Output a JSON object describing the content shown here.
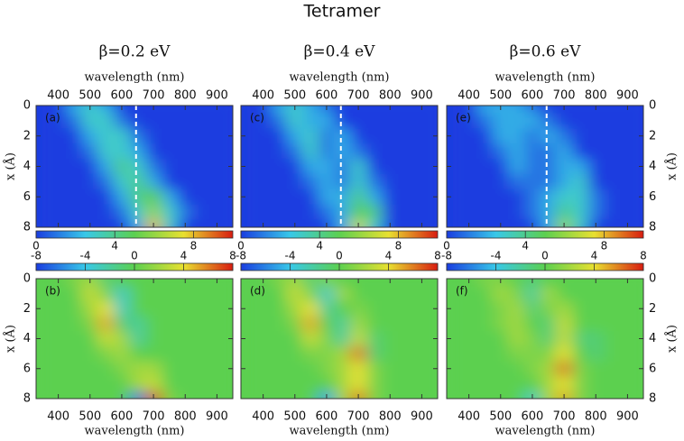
{
  "title": "Tetramer",
  "chart_data": [
    {
      "type": "heatmap",
      "subtitle": "β=0.2 eV",
      "panel_label": "(a)",
      "xlabel": "wavelength (nm)",
      "ylabel": "x (Å)",
      "xaxis_side": "top",
      "ytick_side": "left",
      "colorbar_side": "bottom",
      "x": [
        350,
        400,
        450,
        500,
        550,
        600,
        650,
        700,
        750,
        800,
        850,
        900,
        950
      ],
      "y": [
        0,
        1,
        2,
        3,
        4,
        5,
        6,
        7,
        8
      ],
      "xlim": [
        330,
        950
      ],
      "ylim": [
        0,
        8
      ],
      "xticks": [
        400,
        500,
        600,
        700,
        800,
        900
      ],
      "yticks": [
        0,
        2,
        4,
        6,
        8
      ],
      "zlim": [
        0,
        10
      ],
      "colorbar_ticks": [
        0,
        4,
        8
      ],
      "dashed_line": 645,
      "colormap": [
        "#1a3de0",
        "#38c8e8",
        "#5cd050",
        "#e8e030",
        "#d81c10"
      ],
      "z": [
        [
          0,
          0,
          2,
          3,
          2,
          0,
          0,
          0,
          0,
          0,
          0,
          0,
          0
        ],
        [
          0,
          0,
          1,
          3,
          3,
          1,
          0,
          0,
          0,
          0,
          0,
          0,
          0
        ],
        [
          0,
          0,
          0,
          2,
          3,
          3,
          1,
          0,
          0,
          0,
          0,
          0,
          0
        ],
        [
          0,
          0,
          0,
          1,
          3,
          3,
          2,
          0,
          0,
          0,
          0,
          0,
          0
        ],
        [
          0,
          0,
          0,
          0,
          2,
          4,
          3,
          1,
          0,
          0,
          0,
          0,
          0
        ],
        [
          0,
          0,
          0,
          0,
          1,
          3,
          4,
          2,
          0,
          0,
          0,
          0,
          0
        ],
        [
          0,
          0,
          0,
          0,
          0,
          2,
          4,
          5,
          2,
          0,
          0,
          0,
          0
        ],
        [
          0,
          0,
          0,
          0,
          0,
          1,
          3,
          6,
          3,
          1,
          0,
          0,
          0
        ],
        [
          0,
          0,
          0,
          0,
          0,
          0,
          2,
          8,
          3,
          0,
          0,
          0,
          0
        ]
      ]
    },
    {
      "type": "heatmap",
      "subtitle": "β=0.4 eV",
      "panel_label": "(c)",
      "xlabel": "wavelength (nm)",
      "xaxis_side": "top",
      "ytick_side": "none",
      "colorbar_side": "bottom",
      "x": [
        350,
        400,
        450,
        500,
        550,
        600,
        650,
        700,
        750,
        800,
        850,
        900,
        950
      ],
      "y": [
        0,
        1,
        2,
        3,
        4,
        5,
        6,
        7,
        8
      ],
      "xlim": [
        330,
        950
      ],
      "ylim": [
        0,
        8
      ],
      "xticks": [
        400,
        500,
        600,
        700,
        800,
        900
      ],
      "yticks": [
        0,
        2,
        4,
        6,
        8
      ],
      "zlim": [
        0,
        10
      ],
      "colorbar_ticks": [
        0,
        4,
        8
      ],
      "dashed_line": 645,
      "colormap": [
        "#1a3de0",
        "#38c8e8",
        "#5cd050",
        "#e8e030",
        "#d81c10"
      ],
      "z": [
        [
          0,
          0,
          2,
          3,
          2,
          1,
          0,
          0,
          0,
          0,
          0,
          0,
          0
        ],
        [
          0,
          0,
          1,
          3,
          2,
          2,
          0,
          0,
          0,
          0,
          0,
          0,
          0
        ],
        [
          0,
          0,
          0,
          2,
          3,
          1,
          2,
          0,
          0,
          0,
          0,
          0,
          0
        ],
        [
          0,
          0,
          0,
          1,
          3,
          1,
          2,
          1,
          0,
          0,
          0,
          0,
          0
        ],
        [
          0,
          0,
          0,
          0,
          2,
          2,
          1,
          3,
          0,
          0,
          0,
          0,
          0
        ],
        [
          0,
          0,
          0,
          0,
          1,
          2,
          1,
          3,
          1,
          0,
          0,
          0,
          0
        ],
        [
          0,
          0,
          0,
          0,
          0,
          2,
          2,
          4,
          2,
          0,
          0,
          0,
          0
        ],
        [
          0,
          0,
          0,
          0,
          0,
          1,
          2,
          5,
          4,
          0,
          0,
          0,
          0
        ],
        [
          0,
          0,
          0,
          0,
          0,
          0,
          2,
          7,
          3,
          0,
          0,
          0,
          0
        ]
      ]
    },
    {
      "type": "heatmap",
      "subtitle": "β=0.6 eV",
      "panel_label": "(e)",
      "xlabel": "wavelength (nm)",
      "ylabel": "x (Å)",
      "xaxis_side": "top",
      "ytick_side": "right",
      "colorbar_side": "bottom",
      "x": [
        350,
        400,
        450,
        500,
        550,
        600,
        650,
        700,
        750,
        800,
        850,
        900,
        950
      ],
      "y": [
        0,
        1,
        2,
        3,
        4,
        5,
        6,
        7,
        8
      ],
      "xlim": [
        330,
        950
      ],
      "ylim": [
        0,
        8
      ],
      "xticks": [
        400,
        500,
        600,
        700,
        800,
        900
      ],
      "yticks": [
        0,
        2,
        4,
        6,
        8
      ],
      "zlim": [
        0,
        10
      ],
      "colorbar_ticks": [
        0,
        4,
        8
      ],
      "dashed_line": 645,
      "colormap": [
        "#1a3de0",
        "#38c8e8",
        "#5cd050",
        "#e8e030",
        "#d81c10"
      ],
      "z": [
        [
          0,
          0,
          2,
          2,
          2,
          1,
          0,
          0,
          0,
          0,
          0,
          0,
          0
        ],
        [
          0,
          0,
          1,
          2,
          2,
          2,
          1,
          0,
          0,
          0,
          0,
          0,
          0
        ],
        [
          0,
          0,
          0,
          2,
          2,
          1,
          2,
          1,
          0,
          0,
          0,
          0,
          0
        ],
        [
          0,
          0,
          0,
          1,
          2,
          1,
          1,
          2,
          0,
          0,
          0,
          0,
          0
        ],
        [
          0,
          0,
          0,
          0,
          2,
          1,
          1,
          2,
          2,
          0,
          0,
          0,
          0
        ],
        [
          0,
          0,
          0,
          0,
          1,
          1,
          1,
          2,
          3,
          0,
          0,
          0,
          0
        ],
        [
          0,
          0,
          0,
          0,
          0,
          1,
          2,
          3,
          3,
          1,
          0,
          0,
          0
        ],
        [
          0,
          0,
          0,
          0,
          0,
          1,
          2,
          4,
          3,
          1,
          0,
          0,
          0
        ],
        [
          0,
          0,
          0,
          0,
          0,
          0,
          2,
          6,
          3,
          0,
          0,
          0,
          0
        ]
      ]
    },
    {
      "type": "heatmap",
      "panel_label": "(b)",
      "xlabel": "wavelength (nm)",
      "ylabel": "x (Å)",
      "xaxis_side": "bottom",
      "ytick_side": "left",
      "colorbar_side": "top",
      "x": [
        350,
        400,
        450,
        500,
        550,
        600,
        650,
        700,
        750,
        800,
        850,
        900,
        950
      ],
      "y": [
        0,
        1,
        2,
        3,
        4,
        5,
        6,
        7,
        8
      ],
      "xlim": [
        330,
        950
      ],
      "ylim": [
        0,
        8
      ],
      "xticks": [
        400,
        500,
        600,
        700,
        800,
        900
      ],
      "yticks": [
        0,
        2,
        4,
        6,
        8
      ],
      "zlim": [
        -8,
        8
      ],
      "colorbar_ticks": [
        -8,
        -4,
        0,
        4,
        8
      ],
      "colormap": [
        "#1a3de0",
        "#38c8e8",
        "#5cd050",
        "#e8e030",
        "#d81c10"
      ],
      "z": [
        [
          0,
          0,
          1,
          2,
          -1,
          0,
          0,
          0,
          0,
          0,
          0,
          0,
          0
        ],
        [
          0,
          0,
          0,
          3,
          1,
          -3,
          0,
          0,
          0,
          0,
          0,
          0,
          0
        ],
        [
          0,
          0,
          0,
          2,
          4,
          -3,
          0,
          0,
          0,
          0,
          0,
          0,
          0
        ],
        [
          0,
          0,
          0,
          1,
          5,
          -1,
          -2,
          0,
          0,
          0,
          0,
          0,
          0
        ],
        [
          0,
          0,
          0,
          0,
          3,
          2,
          -2,
          0,
          0,
          0,
          0,
          0,
          0
        ],
        [
          0,
          0,
          0,
          0,
          1,
          2,
          0,
          0,
          0,
          0,
          0,
          0,
          0
        ],
        [
          0,
          0,
          0,
          0,
          0,
          1,
          2,
          2,
          0,
          0,
          0,
          0,
          0
        ],
        [
          0,
          0,
          0,
          0,
          0,
          0,
          2,
          3,
          0,
          0,
          0,
          0,
          0
        ],
        [
          0,
          0,
          0,
          0,
          0,
          0,
          -6,
          7,
          1,
          0,
          0,
          0,
          0
        ]
      ]
    },
    {
      "type": "heatmap",
      "panel_label": "(d)",
      "xlabel": "wavelength (nm)",
      "xaxis_side": "bottom",
      "ytick_side": "none",
      "colorbar_side": "top",
      "x": [
        350,
        400,
        450,
        500,
        550,
        600,
        650,
        700,
        750,
        800,
        850,
        900,
        950
      ],
      "y": [
        0,
        1,
        2,
        3,
        4,
        5,
        6,
        7,
        8
      ],
      "xlim": [
        330,
        950
      ],
      "ylim": [
        0,
        8
      ],
      "xticks": [
        400,
        500,
        600,
        700,
        800,
        900
      ],
      "yticks": [
        0,
        2,
        4,
        6,
        8
      ],
      "zlim": [
        -8,
        8
      ],
      "colorbar_ticks": [
        -8,
        -4,
        0,
        4,
        8
      ],
      "colormap": [
        "#1a3de0",
        "#38c8e8",
        "#5cd050",
        "#e8e030",
        "#d81c10"
      ],
      "z": [
        [
          0,
          0,
          1,
          2,
          -1,
          1,
          0,
          0,
          0,
          0,
          0,
          0,
          0
        ],
        [
          0,
          0,
          0,
          3,
          1,
          -3,
          2,
          0,
          0,
          0,
          0,
          0,
          0
        ],
        [
          0,
          0,
          0,
          2,
          4,
          -2,
          0,
          1,
          0,
          0,
          0,
          0,
          0
        ],
        [
          0,
          0,
          0,
          1,
          5,
          0,
          -2,
          2,
          0,
          0,
          0,
          0,
          0
        ],
        [
          0,
          0,
          0,
          0,
          3,
          1,
          -2,
          3,
          -1,
          0,
          0,
          0,
          0
        ],
        [
          0,
          0,
          0,
          0,
          1,
          1,
          2,
          6,
          -1,
          0,
          0,
          0,
          0
        ],
        [
          0,
          0,
          0,
          0,
          0,
          1,
          2,
          4,
          1,
          0,
          0,
          0,
          0
        ],
        [
          0,
          0,
          0,
          0,
          0,
          0,
          2,
          4,
          1,
          0,
          0,
          0,
          0
        ],
        [
          0,
          0,
          0,
          0,
          0,
          -5,
          2,
          6,
          1,
          0,
          0,
          0,
          0
        ]
      ]
    },
    {
      "type": "heatmap",
      "panel_label": "(f)",
      "xlabel": "wavelength (nm)",
      "ylabel": "x (Å)",
      "xaxis_side": "bottom",
      "ytick_side": "right",
      "colorbar_side": "top",
      "x": [
        350,
        400,
        450,
        500,
        550,
        600,
        650,
        700,
        750,
        800,
        850,
        900,
        950
      ],
      "y": [
        0,
        1,
        2,
        3,
        4,
        5,
        6,
        7,
        8
      ],
      "xlim": [
        330,
        950
      ],
      "ylim": [
        0,
        8
      ],
      "xticks": [
        400,
        500,
        600,
        700,
        800,
        900
      ],
      "yticks": [
        0,
        2,
        4,
        6,
        8
      ],
      "zlim": [
        -8,
        8
      ],
      "colorbar_ticks": [
        -8,
        -4,
        0,
        4,
        8
      ],
      "colormap": [
        "#1a3de0",
        "#38c8e8",
        "#5cd050",
        "#e8e030",
        "#d81c10"
      ],
      "z": [
        [
          0,
          0,
          1,
          1,
          0,
          -1,
          0,
          0,
          0,
          0,
          0,
          0,
          0
        ],
        [
          0,
          0,
          0,
          2,
          1,
          -2,
          2,
          0,
          0,
          0,
          0,
          0,
          0
        ],
        [
          0,
          0,
          0,
          1,
          2,
          -1,
          1,
          2,
          0,
          0,
          0,
          0,
          0
        ],
        [
          0,
          0,
          0,
          1,
          2,
          0,
          -1,
          3,
          0,
          0,
          0,
          0,
          0
        ],
        [
          0,
          0,
          0,
          0,
          2,
          1,
          -1,
          3,
          -1,
          -1,
          0,
          0,
          0
        ],
        [
          0,
          0,
          0,
          0,
          1,
          1,
          1,
          4,
          0,
          -1,
          0,
          0,
          0
        ],
        [
          0,
          0,
          0,
          0,
          0,
          1,
          2,
          6,
          1,
          0,
          0,
          0,
          0
        ],
        [
          0,
          0,
          0,
          0,
          0,
          0,
          2,
          4,
          1,
          0,
          0,
          0,
          0
        ],
        [
          0,
          0,
          0,
          0,
          0,
          -3,
          2,
          5,
          1,
          0,
          0,
          0,
          0
        ]
      ]
    }
  ]
}
